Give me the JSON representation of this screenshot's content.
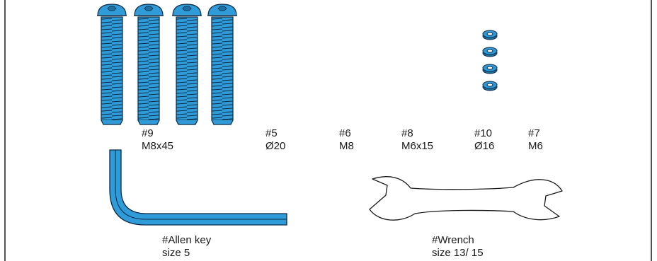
{
  "colors": {
    "part_fill": "#2f9bd8",
    "part_stroke": "#0a2a44",
    "outline": "#1a1a1a",
    "background": "#ffffff"
  },
  "icons": {
    "bolt": "button-head-hex-bolt-icon",
    "washer": "flat-washer-icon",
    "allen_key": "allen-key-icon",
    "wrench": "open-end-wrench-icon"
  },
  "parts": [
    {
      "id": "#9",
      "size": "M8x45"
    },
    {
      "id": "#5",
      "size": "Ø20"
    },
    {
      "id": "#6",
      "size": "M8"
    },
    {
      "id": "#8",
      "size": "M6x15"
    },
    {
      "id": "#10",
      "size": "Ø16"
    },
    {
      "id": "#7",
      "size": "M6"
    }
  ],
  "tools": [
    {
      "id": "#Allen key",
      "size": "size 5"
    },
    {
      "id": "#Wrench",
      "size": "size 13/ 15"
    }
  ]
}
